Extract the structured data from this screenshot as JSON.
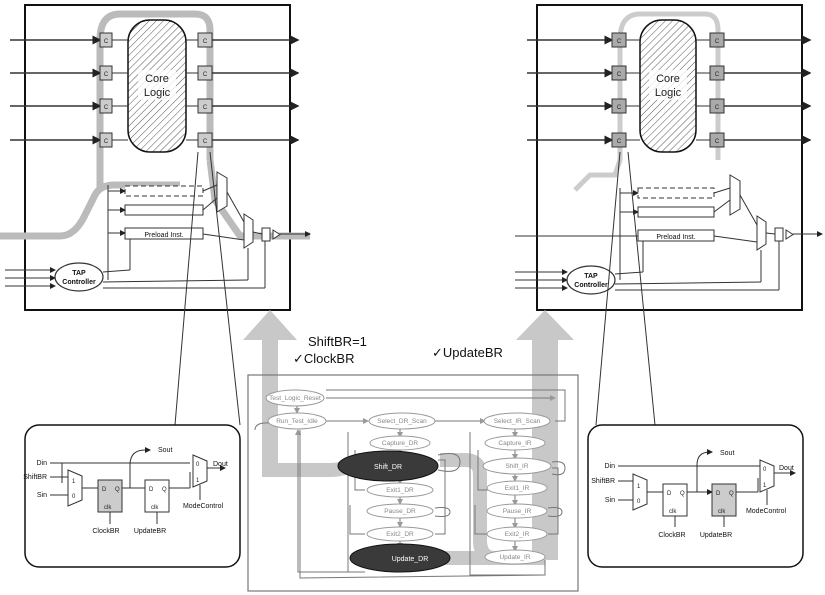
{
  "left_chip": {
    "core_label_1": "Core",
    "core_label_2": "Logic",
    "cell_label": "C",
    "cell_label_d": "D",
    "preload": "Preload Inst.",
    "tap_1": "TAP",
    "tap_2": "Controller"
  },
  "right_chip": {
    "core_label_1": "Core",
    "core_label_2": "Logic",
    "cell_label": "C",
    "cell_label_d": "D",
    "preload": "Preload Inst.",
    "tap_1": "TAP",
    "tap_2": "Controller"
  },
  "left_cell": {
    "din": "Din",
    "shiftbr": "ShiftBR",
    "sin": "Sin",
    "sout": "Sout",
    "dout": "Dout",
    "mux0": "0",
    "mux1": "1",
    "d1": "D",
    "q1": "Q",
    "clk1": "clk",
    "d2": "D",
    "q2": "Q",
    "clk2": "clk",
    "clockbr": "ClockBR",
    "updatebr": "UpdateBR",
    "modecontrol": "ModeControl"
  },
  "right_cell": {
    "din": "Din",
    "shiftbr": "ShiftBR",
    "sin": "Sin",
    "sout": "Sout",
    "dout": "Dout",
    "mux0": "0",
    "mux1": "1",
    "d1": "D",
    "q1": "Q",
    "clk1": "clk",
    "d2": "D",
    "q2": "Q",
    "clk2": "clk",
    "clockbr": "ClockBR",
    "updatebr": "UpdateBR",
    "modecontrol": "ModeControl"
  },
  "annotations": {
    "shift_br": "ShiftBR=1",
    "clock_br": "✓ClockBR",
    "update_br": "✓UpdateBR"
  },
  "fsm": {
    "test_logic_reset": "Test_Logic_Reset",
    "run_test_idle": "Run_Test_Idle",
    "select_dr": "Select_DR_Scan",
    "select_ir": "Select_IR_Scan",
    "capture_dr": "Capture_DR",
    "capture_ir": "Capture_IR",
    "shift_dr": "Shift_DR",
    "shift_ir": "Shift_IR",
    "exit1_dr": "Exit1_DR",
    "exit1_ir": "Exit1_IR",
    "pause_dr": "Pause_DR",
    "pause_ir": "Pause_IR",
    "exit2_dr": "Exit2_DR",
    "exit2_ir": "Exit2_IR",
    "update_dr": "Update_DR",
    "update_ir": "Update_IR"
  }
}
